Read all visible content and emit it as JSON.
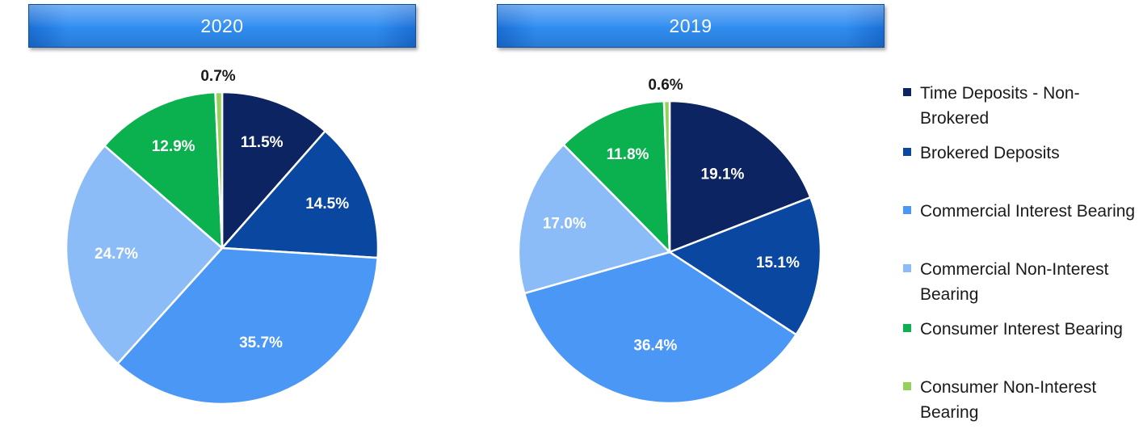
{
  "banners": {
    "left": "2020",
    "right": "2019"
  },
  "colors": {
    "time_deposits": "#0c2461",
    "brokered": "#0a47a0",
    "commercial_interest": "#4b97f5",
    "commercial_non_interest": "#8bbcf7",
    "consumer_interest": "#0bb14e",
    "consumer_non_interest": "#93d15a",
    "label_light": "#ffffff",
    "label_dark": "#1a1a1a"
  },
  "legend": {
    "items": [
      {
        "label": "Time Deposits - Non-Brokered",
        "color": "#0c2461"
      },
      {
        "label": "Brokered Deposits",
        "color": "#0a47a0"
      },
      {
        "label": "Commercial Interest Bearing",
        "color": "#4b97f5"
      },
      {
        "label": "Commercial Non-Interest Bearing",
        "color": "#8bbcf7"
      },
      {
        "label": "Consumer Interest Bearing",
        "color": "#0bb14e"
      },
      {
        "label": "Consumer Non-Interest Bearing",
        "color": "#93d15a"
      }
    ]
  },
  "chart_data": [
    {
      "type": "pie",
      "title": "2020",
      "categories": [
        "Time Deposits - Non-Brokered",
        "Brokered Deposits",
        "Commercial Interest Bearing",
        "Commercial Non-Interest Bearing",
        "Consumer Interest Bearing",
        "Consumer Non-Interest Bearing"
      ],
      "values": [
        11.5,
        14.5,
        35.7,
        24.7,
        12.9,
        0.7
      ],
      "labels": [
        "11.5%",
        "14.5%",
        "35.7%",
        "24.7%",
        "12.9%",
        "0.7%"
      ],
      "start": "12 o'clock, clockwise"
    },
    {
      "type": "pie",
      "title": "2019",
      "categories": [
        "Time Deposits - Non-Brokered",
        "Brokered Deposits",
        "Commercial Interest Bearing",
        "Commercial Non-Interest Bearing",
        "Consumer Interest Bearing",
        "Consumer Non-Interest Bearing"
      ],
      "values": [
        19.1,
        15.1,
        36.4,
        17.0,
        11.8,
        0.6
      ],
      "labels": [
        "19.1%",
        "15.1%",
        "36.4%",
        "17.0%",
        "11.8%",
        "0.6%"
      ],
      "start": "12 o'clock, clockwise"
    }
  ]
}
